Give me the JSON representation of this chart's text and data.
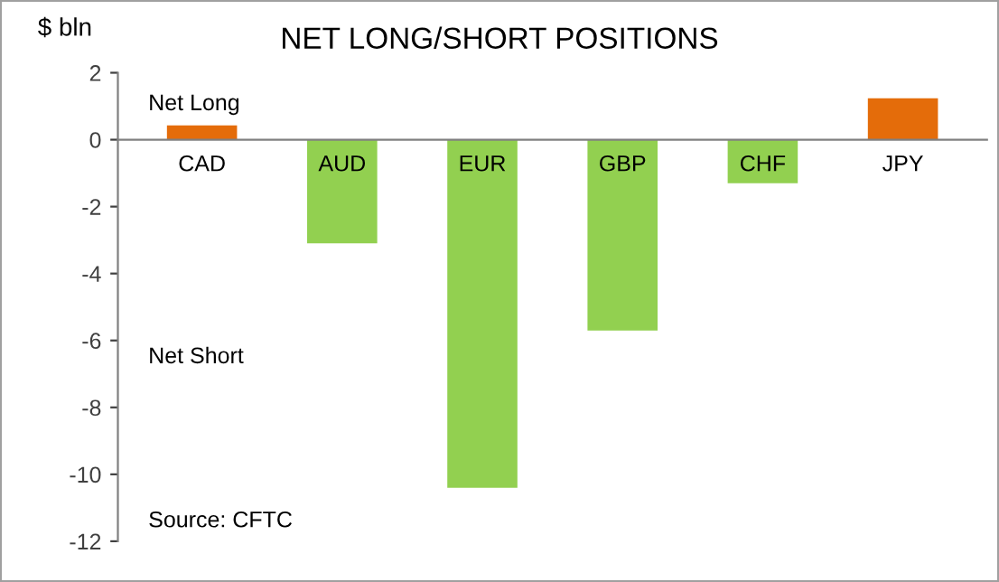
{
  "chart_data": {
    "type": "bar",
    "title": "NET LONG/SHORT POSITIONS",
    "ylabel": "$ bln",
    "categories": [
      "CAD",
      "AUD",
      "EUR",
      "GBP",
      "CHF",
      "JPY"
    ],
    "values": [
      0.43,
      -3.1,
      -10.4,
      -5.7,
      -1.3,
      1.24
    ],
    "colors": [
      "#e46c0a",
      "#92d050",
      "#92d050",
      "#92d050",
      "#92d050",
      "#e46c0a"
    ],
    "ylim": [
      -12,
      2
    ],
    "yticks": [
      -12,
      -10,
      -8,
      -6,
      -4,
      -2,
      0,
      2
    ],
    "grid": false,
    "annotations": [
      "Net Long",
      "Net Short",
      "Source: CFTC"
    ]
  }
}
